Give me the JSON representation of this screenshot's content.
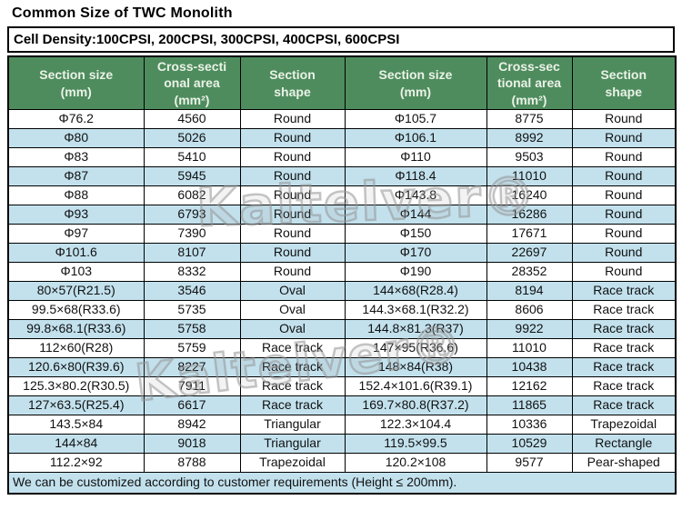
{
  "page": {
    "title": "Common Size of TWC Monolith",
    "cell_density": "Cell Density:100CPSI, 200CPSI, 300CPSI, 400CPSI, 600CPSI"
  },
  "watermark": {
    "text": "Kaltelver®"
  },
  "table": {
    "headers": [
      "Section size\n(mm)",
      "Cross-secti\nonal area\n(mm²)",
      "Section\nshape",
      "Section size\n(mm)",
      "Cross-sec\ntional area\n(mm²)",
      "Section\nshape"
    ],
    "rows": [
      [
        "Φ76.2",
        "4560",
        "Round",
        "Φ105.7",
        "8775",
        "Round"
      ],
      [
        "Φ80",
        "5026",
        "Round",
        "Φ106.1",
        "8992",
        "Round"
      ],
      [
        "Φ83",
        "5410",
        "Round",
        "Φ110",
        "9503",
        "Round"
      ],
      [
        "Φ87",
        "5945",
        "Round",
        "Φ118.4",
        "11010",
        "Round"
      ],
      [
        "Φ88",
        "6082",
        "Round",
        "Φ143.8",
        "16240",
        "Round"
      ],
      [
        "Φ93",
        "6793",
        "Round",
        "Φ144",
        "16286",
        "Round"
      ],
      [
        "Φ97",
        "7390",
        "Round",
        "Φ150",
        "17671",
        "Round"
      ],
      [
        "Φ101.6",
        "8107",
        "Round",
        "Φ170",
        "22697",
        "Round"
      ],
      [
        "Φ103",
        "8332",
        "Round",
        "Φ190",
        "28352",
        "Round"
      ],
      [
        "80×57(R21.5)",
        "3546",
        "Oval",
        "144×68(R28.4)",
        "8194",
        "Race track"
      ],
      [
        "99.5×68(R33.6)",
        "5735",
        "Oval",
        "144.3×68.1(R32.2)",
        "8606",
        "Race track"
      ],
      [
        "99.8×68.1(R33.6)",
        "5758",
        "Oval",
        "144.8×81.3(R37)",
        "9922",
        "Race track"
      ],
      [
        "112×60(R28)",
        "5759",
        "Race track",
        "147×95(R36.6)",
        "11010",
        "Race track"
      ],
      [
        "120.6×80(R39.6)",
        "8227",
        "Race track",
        "148×84(R38)",
        "10438",
        "Race track"
      ],
      [
        "125.3×80.2(R30.5)",
        "7911",
        "Race track",
        "152.4×101.6(R39.1)",
        "12162",
        "Race track"
      ],
      [
        "127×63.5(R25.4)",
        "6617",
        "Race track",
        "169.7×80.8(R37.2)",
        "11865",
        "Race track"
      ],
      [
        "143.5×84",
        "8942",
        "Triangular",
        "122.3×104.4",
        "10336",
        "Trapezoidal"
      ],
      [
        "144×84",
        "9018",
        "Triangular",
        "119.5×99.5",
        "10529",
        "Rectangle"
      ],
      [
        "112.2×92",
        "8788",
        "Trapezoidal",
        "120.2×108",
        "9577",
        "Pear-shaped"
      ]
    ],
    "note": "We can be customized according to customer requirements (Height ≤ 200mm)."
  },
  "colors": {
    "header_bg": "#4e8c5e",
    "header_text": "#eaf2e6",
    "row_alt_bg": "#c2e1ed",
    "border": "#000000"
  }
}
